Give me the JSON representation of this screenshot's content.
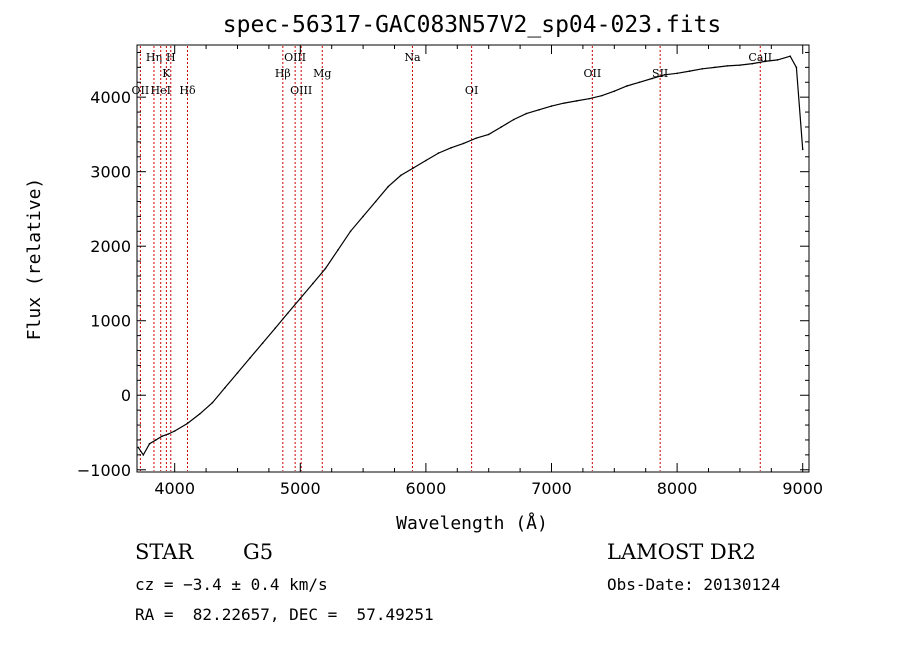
{
  "chart_data": {
    "type": "line",
    "title": "spec-56317-GAC083N57V2_sp04-023.fits",
    "xlabel": "Wavelength (Å)",
    "ylabel": "Flux (relative)",
    "xlim": [
      3700,
      9050
    ],
    "ylim": [
      -1030,
      4700
    ],
    "x_ticks": [
      4000,
      5000,
      6000,
      7000,
      8000,
      9000
    ],
    "y_ticks": [
      -1000,
      0,
      1000,
      2000,
      3000,
      4000
    ],
    "grid": false,
    "series": [
      {
        "name": "",
        "color": "#000000",
        "x": [
          3710,
          3750,
          3800,
          3850,
          3900,
          3950,
          4000,
          4100,
          4200,
          4300,
          4400,
          4500,
          4600,
          4700,
          4800,
          4900,
          5000,
          5100,
          5200,
          5300,
          5400,
          5500,
          5600,
          5700,
          5800,
          5900,
          6000,
          6100,
          6200,
          6300,
          6400,
          6500,
          6600,
          6700,
          6800,
          6900,
          7000,
          7100,
          7200,
          7300,
          7400,
          7500,
          7600,
          7700,
          7800,
          7900,
          8000,
          8100,
          8200,
          8300,
          8400,
          8500,
          8600,
          8700,
          8800,
          8900,
          8950,
          9000
        ],
        "y": [
          -700,
          -800,
          -650,
          -600,
          -550,
          -520,
          -480,
          -380,
          -250,
          -100,
          100,
          300,
          500,
          700,
          900,
          1100,
          1300,
          1500,
          1700,
          1950,
          2200,
          2400,
          2600,
          2800,
          2950,
          3050,
          3150,
          3250,
          3320,
          3380,
          3450,
          3500,
          3600,
          3700,
          3780,
          3830,
          3880,
          3920,
          3950,
          3980,
          4020,
          4080,
          4150,
          4200,
          4250,
          4300,
          4320,
          4350,
          4380,
          4400,
          4420,
          4430,
          4450,
          4480,
          4500,
          4550,
          4400,
          3300
        ]
      }
    ],
    "spectral_lines": [
      {
        "label": "OII",
        "x": 3727,
        "row": 4
      },
      {
        "label": "Hη",
        "x": 3835,
        "row": 1
      },
      {
        "label": "HeI",
        "x": 3889,
        "row": 4
      },
      {
        "label": "K",
        "x": 3934,
        "row": 2
      },
      {
        "label": "H",
        "x": 3969,
        "row": 1
      },
      {
        "label": "Hδ",
        "x": 4102,
        "row": 4
      },
      {
        "label": "Hβ",
        "x": 4861,
        "row": 3
      },
      {
        "label": "OIII",
        "x": 4959,
        "row": 1
      },
      {
        "label": "OIII",
        "x": 5007,
        "row": 4
      },
      {
        "label": "Mg",
        "x": 5175,
        "row": 3
      },
      {
        "label": "Na",
        "x": 5893,
        "row": 1
      },
      {
        "label": "OI",
        "x": 6364,
        "row": 4
      },
      {
        "label": "OII",
        "x": 7325,
        "row": 3
      },
      {
        "label": "SII",
        "x": 7865,
        "row": 3
      },
      {
        "label": "CaII",
        "x": 8662,
        "row": 1
      }
    ],
    "line_color": "#cc0000"
  },
  "footer": {
    "class_label": "STAR",
    "subclass": "G5",
    "survey": "LAMOST DR2",
    "cz": "cz = −3.4 ± 0.4 km/s",
    "obs_date": "Obs-Date: 20130124",
    "coords": "RA =  82.22657, DEC =  57.49251"
  }
}
